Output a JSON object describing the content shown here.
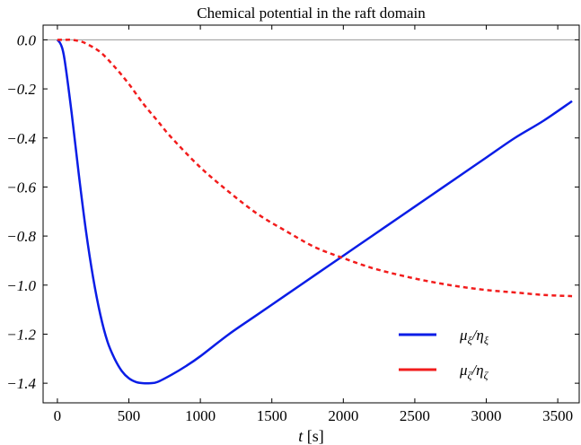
{
  "chart_data": {
    "type": "line",
    "title": "Chemical potential in the raft domain",
    "xlabel_var": "t",
    "xlabel_unit": "[s]",
    "ylabel": "",
    "xlim": [
      -100,
      3650
    ],
    "ylim": [
      -1.48,
      0.06
    ],
    "xticks": [
      0,
      500,
      1000,
      1500,
      2000,
      2500,
      3000,
      3500
    ],
    "xtick_labels": [
      "0",
      "500",
      "1000",
      "1500",
      "2000",
      "2500",
      "3000",
      "3500"
    ],
    "yticks": [
      0.0,
      -0.2,
      -0.4,
      -0.6,
      -0.8,
      -1.0,
      -1.2,
      -1.4
    ],
    "ytick_labels": [
      "0.0",
      "−0.2",
      "−0.4",
      "−0.6",
      "−0.8",
      "−1.0",
      "−1.2",
      "−1.4"
    ],
    "grid": false,
    "reference_line_y": 0,
    "legend_position": "lower-right",
    "series": [
      {
        "name": "μξ/ηξ",
        "color": "#0a1de6",
        "style": "solid",
        "x": [
          0,
          25,
          50,
          100,
          150,
          200,
          250,
          300,
          350,
          400,
          450,
          500,
          550,
          600,
          650,
          700,
          800,
          900,
          1000,
          1200,
          1400,
          1600,
          1800,
          2000,
          2200,
          2400,
          2600,
          2800,
          3000,
          3200,
          3400,
          3600
        ],
        "y": [
          0.0,
          -0.02,
          -0.08,
          -0.3,
          -0.55,
          -0.78,
          -0.97,
          -1.12,
          -1.23,
          -1.3,
          -1.35,
          -1.38,
          -1.395,
          -1.4,
          -1.4,
          -1.395,
          -1.365,
          -1.33,
          -1.29,
          -1.2,
          -1.12,
          -1.04,
          -0.96,
          -0.88,
          -0.8,
          -0.72,
          -0.64,
          -0.56,
          -0.48,
          -0.4,
          -0.33,
          -0.25
        ]
      },
      {
        "name": "μζ/ηζ",
        "color": "#f21c1c",
        "style": "dashed",
        "x": [
          0,
          50,
          100,
          150,
          200,
          300,
          400,
          500,
          600,
          700,
          800,
          1000,
          1200,
          1400,
          1600,
          1800,
          2000,
          2200,
          2400,
          2600,
          2800,
          3000,
          3200,
          3400,
          3600
        ],
        "y": [
          0.0,
          0.0,
          0.0,
          -0.005,
          -0.015,
          -0.05,
          -0.11,
          -0.18,
          -0.26,
          -0.33,
          -0.4,
          -0.52,
          -0.62,
          -0.71,
          -0.78,
          -0.845,
          -0.89,
          -0.93,
          -0.96,
          -0.985,
          -1.005,
          -1.02,
          -1.03,
          -1.04,
          -1.045
        ]
      }
    ],
    "legend": [
      {
        "symbol": "μ",
        "sub1": "ξ",
        "symbol2": "η",
        "sub2": "ξ",
        "color": "#0a1de6",
        "style": "solid"
      },
      {
        "symbol": "μ",
        "sub1": "ζ",
        "symbol2": "η",
        "sub2": "ζ",
        "color": "#f21c1c",
        "style": "dashed"
      }
    ]
  }
}
